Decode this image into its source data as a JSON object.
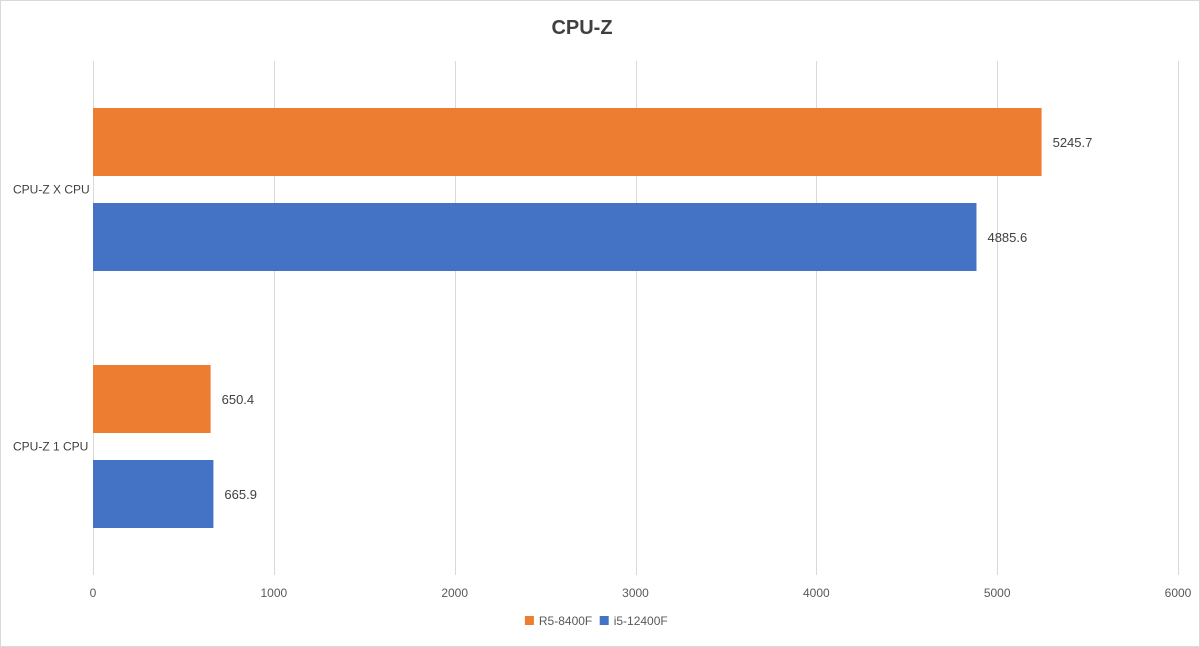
{
  "chart_data": {
    "type": "bar",
    "orientation": "horizontal",
    "title": "CPU-Z",
    "categories": [
      "CPU-Z X CPU",
      "CPU-Z 1 CPU"
    ],
    "series": [
      {
        "name": "R5-8400F",
        "color": "#ED7D31",
        "values": [
          5245.7,
          650.4
        ]
      },
      {
        "name": "i5-12400F",
        "color": "#4472C4",
        "values": [
          4885.6,
          665.9
        ]
      }
    ],
    "data_labels": [
      [
        "5245.7",
        "650.4"
      ],
      [
        "4885.6",
        "665.9"
      ]
    ],
    "xlim": [
      0,
      6000
    ],
    "xticks": [
      0,
      1000,
      2000,
      3000,
      4000,
      5000,
      6000
    ],
    "xlabel": "",
    "ylabel": "",
    "grid": true,
    "legend_position": "bottom"
  }
}
